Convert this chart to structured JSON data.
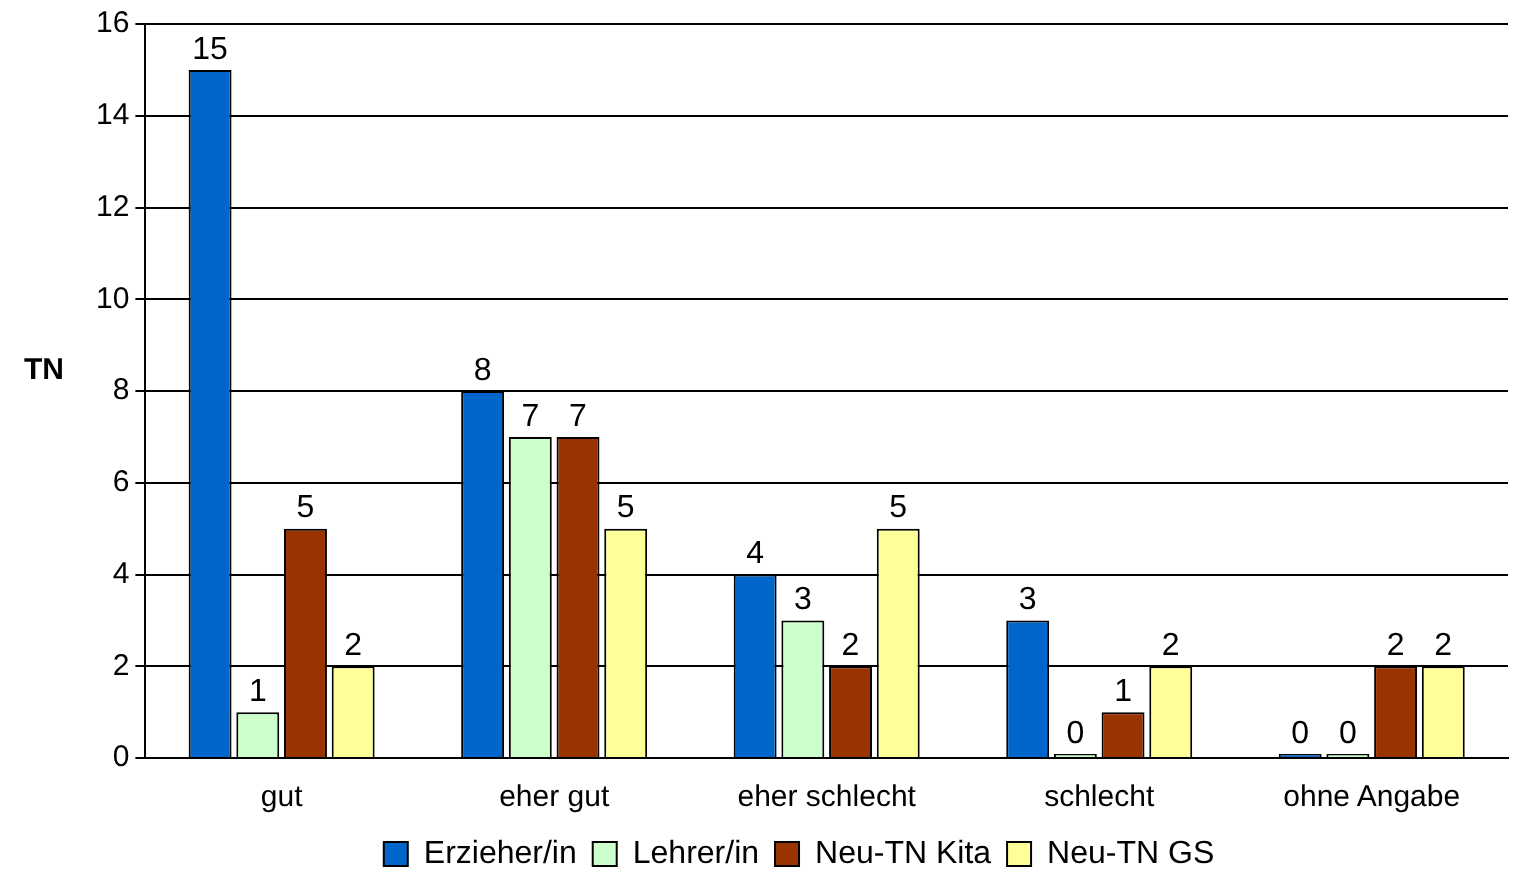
{
  "chart_data": {
    "type": "bar",
    "ylabel": "TN",
    "categories": [
      "gut",
      "eher gut",
      "eher schlecht",
      "schlecht",
      "ohne Angabe"
    ],
    "series": [
      {
        "name": "Erzieher/in",
        "color": "#0066cc",
        "values": [
          15,
          8,
          4,
          3,
          0
        ]
      },
      {
        "name": "Lehrer/in",
        "color": "#ccffcc",
        "values": [
          1,
          7,
          3,
          0,
          0
        ]
      },
      {
        "name": "Neu-TN Kita",
        "color": "#993300",
        "values": [
          5,
          7,
          2,
          1,
          2
        ]
      },
      {
        "name": "Neu-TN GS",
        "color": "#ffff99",
        "values": [
          2,
          5,
          5,
          2,
          2
        ]
      }
    ],
    "ylim": [
      0,
      16
    ],
    "yticks": [
      0,
      2,
      4,
      6,
      8,
      10,
      12,
      14,
      16
    ],
    "grid": "y",
    "legend": "bottom",
    "data_labels": true
  }
}
